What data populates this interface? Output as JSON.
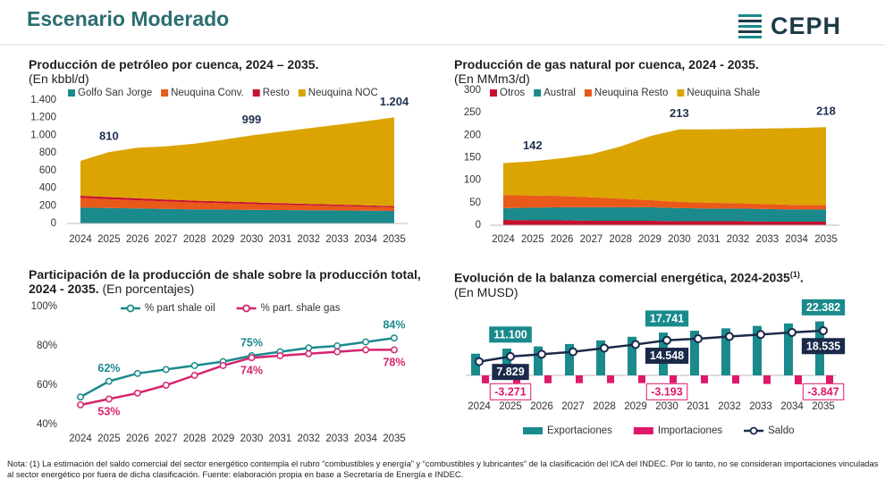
{
  "header": {
    "title": "Escenario Moderado",
    "logo": "CEPH"
  },
  "chart_data": [
    {
      "type": "area",
      "title": "Producción de petróleo por cuenca, 2024 – 2035.",
      "subtitle": "(En kbbl/d)",
      "categories": [
        "2024",
        "2025",
        "2026",
        "2027",
        "2028",
        "2029",
        "2030",
        "2031",
        "2032",
        "2033",
        "2034",
        "2035"
      ],
      "series": [
        {
          "name": "Golfo San Jorge",
          "color": "#1a8a8c",
          "values": [
            180,
            175,
            170,
            165,
            160,
            158,
            155,
            152,
            150,
            148,
            145,
            142
          ]
        },
        {
          "name": "Neuquina Conv.",
          "color": "#e8591a",
          "values": [
            110,
            100,
            92,
            85,
            78,
            72,
            66,
            60,
            55,
            50,
            45,
            40
          ]
        },
        {
          "name": "Resto",
          "color": "#c8102e",
          "values": [
            25,
            24,
            23,
            22,
            21,
            20,
            19,
            18,
            17,
            16,
            15,
            14
          ]
        },
        {
          "name": "Neuquina NOC",
          "color": "#dba400",
          "values": [
            395,
            511,
            575,
            603,
            646,
            700,
            759,
            810,
            858,
            906,
            955,
            1008
          ]
        }
      ],
      "annotations": [
        {
          "x": "2025",
          "value": 810
        },
        {
          "x": "2030",
          "value": 999
        },
        {
          "x": "2035",
          "value": 1204,
          "label": "1.204"
        }
      ],
      "ylim": [
        0,
        1400
      ],
      "yticks": [
        0,
        200,
        400,
        600,
        800,
        {
          "value": 1000,
          "label": "1.000"
        },
        {
          "value": 1200,
          "label": "1.200"
        },
        {
          "value": 1400,
          "label": "1.400"
        }
      ],
      "grid": false,
      "legend": "top"
    },
    {
      "type": "area",
      "title": "Producción de gas natural por cuenca, 2024 - 2035.",
      "subtitle": "(En MMm3/d)",
      "categories": [
        "2024",
        "2025",
        "2026",
        "2027",
        "2028",
        "2029",
        "2030",
        "2031",
        "2032",
        "2033",
        "2034",
        "2035"
      ],
      "series": [
        {
          "name": "Otros",
          "color": "#c8102e",
          "values": [
            12,
            11,
            11,
            10,
            10,
            10,
            9,
            9,
            9,
            8,
            8,
            8
          ]
        },
        {
          "name": "Austral",
          "color": "#1a8a8c",
          "values": [
            26,
            28,
            29,
            30,
            30,
            30,
            29,
            28,
            28,
            28,
            27,
            27
          ]
        },
        {
          "name": "Neuquina Resto",
          "color": "#e8591a",
          "values": [
            29,
            27,
            25,
            22,
            19,
            16,
            14,
            13,
            12,
            11,
            10,
            10
          ]
        },
        {
          "name": "Neuquina Shale",
          "color": "#dba400",
          "values": [
            71,
            76,
            84,
            96,
            116,
            142,
            161,
            163,
            165,
            168,
            171,
            173
          ]
        }
      ],
      "annotations": [
        {
          "x": "2025",
          "value": 142
        },
        {
          "x": "2030",
          "value": 213
        },
        {
          "x": "2035",
          "value": 218
        }
      ],
      "ylim": [
        0,
        300
      ],
      "yticks": [
        0,
        50,
        100,
        150,
        200,
        250,
        300
      ],
      "grid": false,
      "legend": "top"
    },
    {
      "type": "line",
      "title": "Participación de la producción de shale sobre la producción total, 2024 - 2035.",
      "subtitle": "(En porcentajes)",
      "categories": [
        "2024",
        "2025",
        "2026",
        "2027",
        "2028",
        "2029",
        "2030",
        "2031",
        "2032",
        "2033",
        "2034",
        "2035"
      ],
      "series": [
        {
          "name": "% part shale oil",
          "color": "#1a8a8c",
          "values": [
            54,
            62,
            66,
            68,
            70,
            72,
            75,
            77,
            79,
            80,
            82,
            84
          ],
          "value_labels": [
            null,
            "62%",
            null,
            null,
            null,
            null,
            "75%",
            null,
            null,
            null,
            null,
            "84%"
          ]
        },
        {
          "name": "% part. shale gas",
          "color": "#d6246e",
          "values": [
            50,
            53,
            56,
            60,
            65,
            70,
            74,
            75,
            76,
            77,
            78,
            78
          ],
          "value_labels": [
            null,
            "53%",
            null,
            null,
            null,
            null,
            "74%",
            null,
            null,
            null,
            null,
            "78%"
          ]
        }
      ],
      "ylim": [
        40,
        100
      ],
      "yticks": [
        {
          "value": 40,
          "label": "40%"
        },
        {
          "value": 60,
          "label": "60%"
        },
        {
          "value": 80,
          "label": "80%"
        },
        {
          "value": 100,
          "label": "100%"
        }
      ],
      "grid": false,
      "legend": "top"
    },
    {
      "type": "bar",
      "title": "Evolución de la balanza comercial energética, 2024-2035",
      "title_superscript": "(1)",
      "title_suffix": ".",
      "subtitle": "(En MUSD)",
      "categories": [
        "2024",
        "2025",
        "2026",
        "2027",
        "2028",
        "2029",
        "2030",
        "2031",
        "2032",
        "2033",
        "2034",
        "2035"
      ],
      "series": [
        {
          "name": "Exportaciones",
          "color": "#1a8a8c",
          "values": [
            9000,
            11100,
            12000,
            13000,
            14500,
            16000,
            17741,
            18500,
            19500,
            20500,
            21500,
            22382
          ],
          "value_labels": [
            null,
            "11.100",
            null,
            null,
            null,
            null,
            "17.741",
            null,
            null,
            null,
            null,
            "22.382"
          ]
        },
        {
          "name": "Importaciones",
          "color": "#e0186c",
          "values": [
            -3300,
            -3271,
            -3250,
            -3230,
            -3210,
            -3200,
            -3193,
            -3300,
            -3400,
            -3550,
            -3700,
            -3847
          ],
          "value_labels": [
            null,
            "-3.271",
            null,
            null,
            null,
            null,
            "-3.193",
            null,
            null,
            null,
            null,
            "-3.847"
          ]
        },
        {
          "name": "Saldo",
          "type": "line",
          "color": "#1b2a4a",
          "values": [
            5700,
            7829,
            8750,
            9770,
            11290,
            12800,
            14548,
            15200,
            16100,
            16950,
            17800,
            18535
          ],
          "value_labels": [
            null,
            "7.829",
            null,
            null,
            null,
            null,
            "14.548",
            null,
            null,
            null,
            null,
            "18.535"
          ]
        }
      ],
      "ylim": [
        -5000,
        25000
      ],
      "grid": false,
      "legend": "bottom"
    }
  ],
  "note": "Nota: (1) La estimación del saldo comercial del sector energético contempla el rubro “combustibles y energía” y “combustibles y lubricantes” de la clasificación del ICA del INDEC. Por lo tanto, no se consideran importaciones vinculadas al sector energético por fuera de dicha clasificación. Fuente: elaboración propia en base a Secretaría de Energía e INDEC."
}
